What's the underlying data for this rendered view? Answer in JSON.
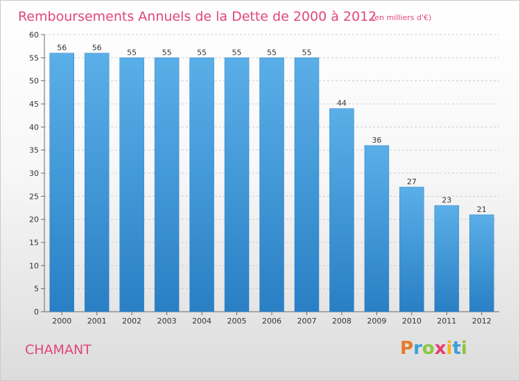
{
  "chart_data": {
    "type": "bar",
    "title": "Remboursements Annuels de la Dette de 2000 à 2012",
    "subtitle": "(en milliers d'€)",
    "categories": [
      "2000",
      "2001",
      "2002",
      "2003",
      "2004",
      "2005",
      "2006",
      "2007",
      "2008",
      "2009",
      "2010",
      "2011",
      "2012"
    ],
    "values": [
      56,
      56,
      55,
      55,
      55,
      55,
      55,
      55,
      44,
      36,
      27,
      23,
      21
    ],
    "ylim": [
      0,
      60
    ],
    "yticks": [
      0,
      5,
      10,
      15,
      20,
      25,
      30,
      35,
      40,
      45,
      50,
      55,
      60
    ],
    "grid": "horizontal dashed",
    "bar_color": "#4a9fdf"
  },
  "commune": "CHAMANT",
  "logo": {
    "text": "Proxiti",
    "letters": [
      {
        "char": "P",
        "color": "#e8782a"
      },
      {
        "char": "r",
        "color": "#3aa0d8"
      },
      {
        "char": "o",
        "color": "#8cc63e"
      },
      {
        "char": "x",
        "color": "#e43f6f"
      },
      {
        "char": "i",
        "color": "#f2b51c"
      },
      {
        "char": "t",
        "color": "#3aa0d8"
      },
      {
        "char": "i",
        "color": "#8cc63e"
      }
    ]
  }
}
